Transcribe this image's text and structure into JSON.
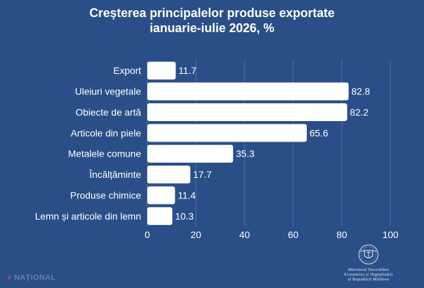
{
  "header": {
    "title_line1": "Creșterea principalelor produse exportate",
    "title_line2": "ianuarie-iulie 2026, %"
  },
  "footer": {
    "ministry_line1": "Ministerul Dezvoltării",
    "ministry_line2": "Economice și Digitalizării",
    "ministry_line3": "al Republicii Moldova",
    "watermark": "NAȚIONAL"
  },
  "colors": {
    "background": "#2a4f88",
    "bar": "#ffffff",
    "grid": "#4f6fa2",
    "text": "#ffffff"
  },
  "chart_data": {
    "type": "bar",
    "orientation": "horizontal",
    "categories": [
      "Export",
      "Uleiuri vegetale",
      "Obiecte de artă",
      "Articole din piele",
      "Metalele comune",
      "Încălțăminte",
      "Produse chimice",
      "Lemn și articole din lemn"
    ],
    "values": [
      11.7,
      82.8,
      82.2,
      65.6,
      35.3,
      17.7,
      11.4,
      10.3
    ],
    "xlim": [
      0,
      100
    ],
    "xticks": [
      0,
      20,
      40,
      60,
      80,
      100
    ],
    "grid": true,
    "data_labels": true
  }
}
